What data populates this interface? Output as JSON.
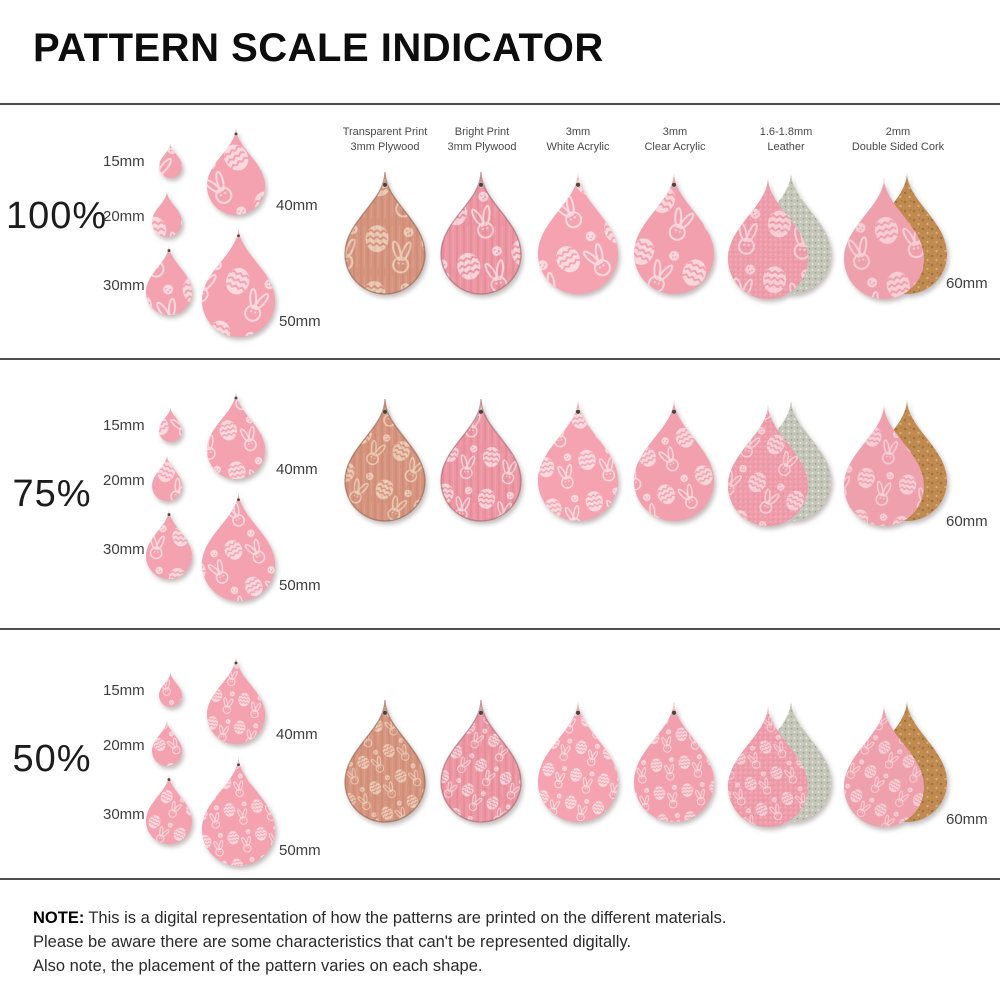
{
  "title": "PATTERN SCALE INDICATOR",
  "columns": [
    {
      "line1": "Transparent Print",
      "line2": "3mm Plywood"
    },
    {
      "line1": "Bright Print",
      "line2": "3mm Plywood"
    },
    {
      "line1": "3mm",
      "line2": "White Acrylic"
    },
    {
      "line1": "3mm",
      "line2": "Clear Acrylic"
    },
    {
      "line1": "1.6-1.8mm",
      "line2": "Leather"
    },
    {
      "line1": "2mm",
      "line2": "Double Sided Cork"
    }
  ],
  "rows": [
    {
      "scale_label": "100%",
      "pattern_scale": 1.0
    },
    {
      "scale_label": "75%",
      "pattern_scale": 0.75
    },
    {
      "scale_label": "50%",
      "pattern_scale": 0.5
    }
  ],
  "size_labels": [
    "15mm",
    "20mm",
    "30mm",
    "40mm",
    "50mm"
  ],
  "right_label": "60mm",
  "note": {
    "label": "NOTE:",
    "line1": "This is a digital representation of how the patterns are printed on the different materials.",
    "line2": "Please be aware there are some characteristics that can't be represented digitally.",
    "line3": "Also note, the placement of the pattern varies on each shape."
  },
  "materials": [
    {
      "name": "transparent-print-plywood",
      "base": "#d6947e",
      "pattern": "#ecc9b3",
      "hole": true,
      "texture": "wood",
      "edge": "#8a5c49"
    },
    {
      "name": "bright-print-plywood",
      "base": "#ee95a3",
      "pattern": "#f9d4da",
      "hole": true,
      "texture": "wood",
      "edge": "#9c606b"
    },
    {
      "name": "white-acrylic",
      "base": "#f5a3b0",
      "pattern": "#fcdbe0",
      "hole": true
    },
    {
      "name": "clear-acrylic",
      "base": "#f2a0ae",
      "pattern": "#f9d6db",
      "hole": true
    },
    {
      "name": "leather",
      "base": "#ee9caa",
      "pattern": "#f7ced5",
      "back": "#c5c6ba",
      "texture": "leather"
    },
    {
      "name": "double-sided-cork",
      "base": "#efa0ad",
      "pattern": "#f7ced5",
      "back": "#c08b51"
    }
  ],
  "cluster_style": {
    "base": "#f4a2b0",
    "pattern": "#fcd9de"
  },
  "ui_colors": {
    "divider": "#4f4f4f",
    "heading_text": "#0d0d0d",
    "label_text": "#3f3f3f",
    "note_text": "#2b2b2b",
    "background": "#ffffff"
  }
}
